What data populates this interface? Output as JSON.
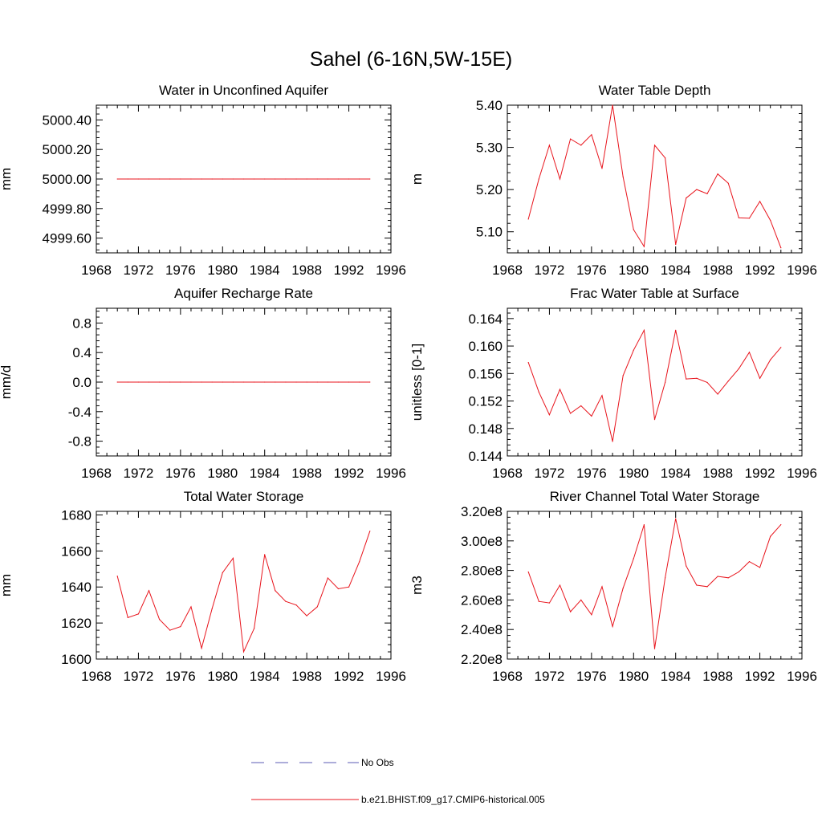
{
  "figure_title": "Sahel (6-16N,5W-15E)",
  "legend": {
    "entries": [
      {
        "label": "No Obs",
        "style": "dashed",
        "color": "#5b5bb5"
      },
      {
        "label": "b.e21.BHIST.f09_g17.CMIP6-historical.005",
        "style": "solid",
        "color": "#e8141c"
      }
    ]
  },
  "colors": {
    "series": "#e8141c",
    "obs": "#5b5bb5",
    "axis": "#000000"
  },
  "chart_data": [
    {
      "type": "line",
      "title": "Water in Unconfined Aquifer",
      "ylabel": "mm",
      "xlim": [
        1968,
        1996
      ],
      "ylim": [
        4999.5,
        5000.5
      ],
      "xticks": [
        1968,
        1972,
        1976,
        1980,
        1984,
        1988,
        1992,
        1996
      ],
      "yticks": [
        4999.6,
        4999.8,
        5000.0,
        5000.2,
        5000.4
      ],
      "yticklabels": [
        "4999.60",
        "4999.80",
        "5000.00",
        "5000.20",
        "5000.40"
      ],
      "x": [
        1970,
        1971,
        1972,
        1973,
        1974,
        1975,
        1976,
        1977,
        1978,
        1979,
        1980,
        1981,
        1982,
        1983,
        1984,
        1985,
        1986,
        1987,
        1988,
        1989,
        1990,
        1991,
        1992,
        1993,
        1994
      ],
      "series": [
        {
          "name": "b.e21.BHIST.f09_g17.CMIP6-historical.005",
          "values": [
            5000,
            5000,
            5000,
            5000,
            5000,
            5000,
            5000,
            5000,
            5000,
            5000,
            5000,
            5000,
            5000,
            5000,
            5000,
            5000,
            5000,
            5000,
            5000,
            5000,
            5000,
            5000,
            5000,
            5000,
            5000
          ]
        }
      ]
    },
    {
      "type": "line",
      "title": "Water Table Depth",
      "ylabel": "m",
      "xlim": [
        1968,
        1996
      ],
      "ylim": [
        5.05,
        5.4
      ],
      "xticks": [
        1968,
        1972,
        1976,
        1980,
        1984,
        1988,
        1992,
        1996
      ],
      "yticks": [
        5.1,
        5.2,
        5.3,
        5.4
      ],
      "yticklabels": [
        "5.10",
        "5.20",
        "5.30",
        "5.40"
      ],
      "x": [
        1970,
        1971,
        1972,
        1973,
        1974,
        1975,
        1976,
        1977,
        1978,
        1979,
        1980,
        1981,
        1982,
        1983,
        1984,
        1985,
        1986,
        1987,
        1988,
        1989,
        1990,
        1991,
        1992,
        1993,
        1994
      ],
      "series": [
        {
          "name": "b.e21.BHIST.f09_g17.CMIP6-historical.005",
          "values": [
            5.13,
            5.225,
            5.305,
            5.225,
            5.32,
            5.305,
            5.33,
            5.25,
            5.4,
            5.23,
            5.105,
            5.065,
            5.305,
            5.275,
            5.07,
            5.18,
            5.2,
            5.19,
            5.237,
            5.215,
            5.133,
            5.132,
            5.172,
            5.127,
            5.062
          ]
        }
      ]
    },
    {
      "type": "line",
      "title": "Aquifer Recharge Rate",
      "ylabel": "mm/d",
      "xlim": [
        1968,
        1996
      ],
      "ylim": [
        -1.0,
        1.0
      ],
      "xticks": [
        1968,
        1972,
        1976,
        1980,
        1984,
        1988,
        1992,
        1996
      ],
      "yticks": [
        -0.8,
        -0.4,
        0.0,
        0.4,
        0.8
      ],
      "yticklabels": [
        "-0.8",
        "-0.4",
        "0.0",
        "0.4",
        "0.8"
      ],
      "x": [
        1970,
        1971,
        1972,
        1973,
        1974,
        1975,
        1976,
        1977,
        1978,
        1979,
        1980,
        1981,
        1982,
        1983,
        1984,
        1985,
        1986,
        1987,
        1988,
        1989,
        1990,
        1991,
        1992,
        1993,
        1994
      ],
      "series": [
        {
          "name": "b.e21.BHIST.f09_g17.CMIP6-historical.005",
          "values": [
            0,
            0,
            0,
            0,
            0,
            0,
            0,
            0,
            0,
            0,
            0,
            0,
            0,
            0,
            0,
            0,
            0,
            0,
            0,
            0,
            0,
            0,
            0,
            0,
            0
          ]
        }
      ]
    },
    {
      "type": "line",
      "title": "Frac Water Table at Surface",
      "ylabel": "unitless [0-1]",
      "xlim": [
        1968,
        1996
      ],
      "ylim": [
        0.144,
        0.1655
      ],
      "xticks": [
        1968,
        1972,
        1976,
        1980,
        1984,
        1988,
        1992,
        1996
      ],
      "yticks": [
        0.144,
        0.148,
        0.152,
        0.156,
        0.16,
        0.164
      ],
      "yticklabels": [
        "0.144",
        "0.148",
        "0.152",
        "0.156",
        "0.160",
        "0.164"
      ],
      "x": [
        1970,
        1971,
        1972,
        1973,
        1974,
        1975,
        1976,
        1977,
        1978,
        1979,
        1980,
        1981,
        1982,
        1983,
        1984,
        1985,
        1986,
        1987,
        1988,
        1989,
        1990,
        1991,
        1992,
        1993,
        1994
      ],
      "series": [
        {
          "name": "b.e21.BHIST.f09_g17.CMIP6-historical.005",
          "values": [
            0.1576,
            0.1533,
            0.15,
            0.1537,
            0.1502,
            0.1513,
            0.1498,
            0.1528,
            0.1461,
            0.1557,
            0.1594,
            0.1623,
            0.1493,
            0.1547,
            0.1623,
            0.1552,
            0.1553,
            0.1547,
            0.153,
            0.1549,
            0.1567,
            0.1591,
            0.1553,
            0.158,
            0.1598
          ]
        }
      ]
    },
    {
      "type": "line",
      "title": "Total Water Storage",
      "ylabel": "mm",
      "xlim": [
        1968,
        1996
      ],
      "ylim": [
        1600,
        1682
      ],
      "xticks": [
        1968,
        1972,
        1976,
        1980,
        1984,
        1988,
        1992,
        1996
      ],
      "yticks": [
        1600,
        1620,
        1640,
        1660,
        1680
      ],
      "yticklabels": [
        "1600",
        "1620",
        "1640",
        "1660",
        "1680"
      ],
      "x": [
        1970,
        1971,
        1972,
        1973,
        1974,
        1975,
        1976,
        1977,
        1978,
        1979,
        1980,
        1981,
        1982,
        1983,
        1984,
        1985,
        1986,
        1987,
        1988,
        1989,
        1990,
        1991,
        1992,
        1993,
        1994
      ],
      "series": [
        {
          "name": "b.e21.BHIST.f09_g17.CMIP6-historical.005",
          "values": [
            1646,
            1623,
            1625,
            1638,
            1622,
            1616,
            1618,
            1629,
            1606,
            1628,
            1648,
            1656,
            1604,
            1617,
            1658,
            1638,
            1632,
            1630,
            1624,
            1629,
            1645,
            1639,
            1640,
            1654,
            1671
          ]
        }
      ]
    },
    {
      "type": "line",
      "title": "River Channel Total Water Storage",
      "ylabel": "m3",
      "xlim": [
        1968,
        1996
      ],
      "ylim": [
        220000000,
        320000000
      ],
      "xticks": [
        1968,
        1972,
        1976,
        1980,
        1984,
        1988,
        1992,
        1996
      ],
      "yticks": [
        220000000,
        240000000,
        260000000,
        280000000,
        300000000,
        320000000
      ],
      "yticklabels": [
        "2.20e8",
        "2.40e8",
        "2.60e8",
        "2.80e8",
        "3.00e8",
        "3.20e8"
      ],
      "x": [
        1970,
        1971,
        1972,
        1973,
        1974,
        1975,
        1976,
        1977,
        1978,
        1979,
        1980,
        1981,
        1982,
        1983,
        1984,
        1985,
        1986,
        1987,
        1988,
        1989,
        1990,
        1991,
        1992,
        1993,
        1994
      ],
      "series": [
        {
          "name": "b.e21.BHIST.f09_g17.CMIP6-historical.005",
          "values": [
            279000000,
            259000000,
            258000000,
            270000000,
            252000000,
            260000000,
            250000000,
            269000000,
            242000000,
            268000000,
            288000000,
            311000000,
            227000000,
            275000000,
            315000000,
            283000000,
            270000000,
            269000000,
            276000000,
            275000000,
            279000000,
            286000000,
            282000000,
            303000000,
            311000000
          ]
        }
      ]
    }
  ]
}
